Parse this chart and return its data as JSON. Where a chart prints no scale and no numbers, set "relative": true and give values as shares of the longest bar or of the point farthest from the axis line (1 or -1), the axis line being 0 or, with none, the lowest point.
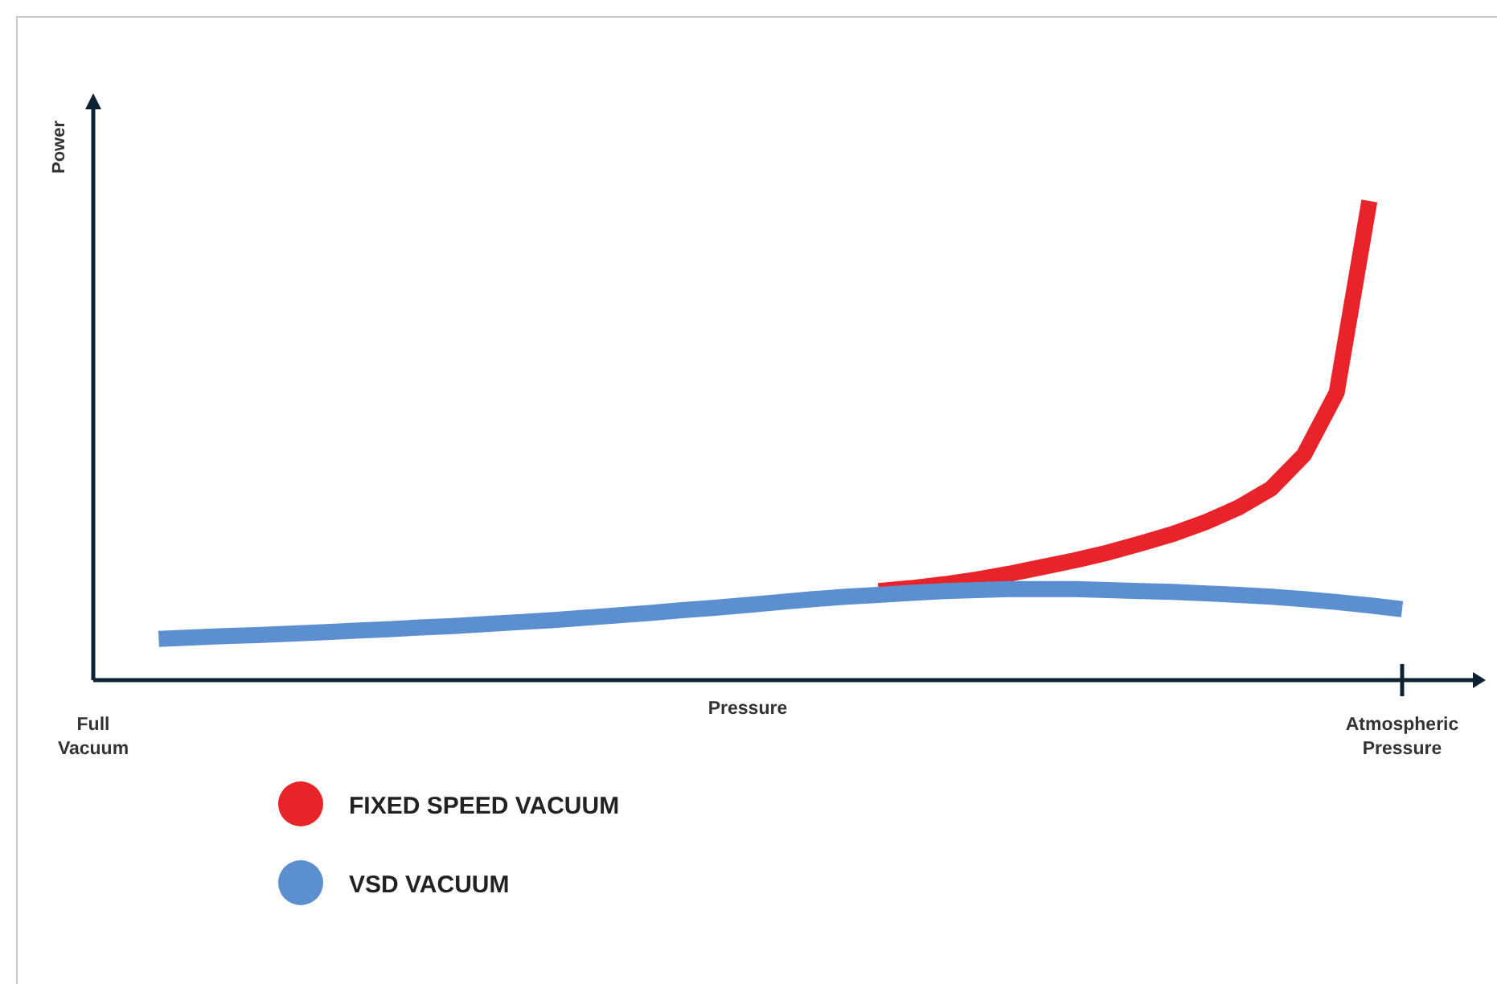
{
  "chart_data": {
    "type": "line",
    "relative": true,
    "xlabel": "Pressure",
    "ylabel": "Power",
    "categories": [
      "Full Vacuum",
      null,
      null,
      null,
      null,
      null,
      null,
      null,
      null,
      null,
      null,
      null,
      null,
      null,
      null,
      null,
      null,
      null,
      null,
      null,
      null,
      null,
      null,
      null,
      null,
      null,
      null,
      null,
      null,
      null,
      null,
      null,
      null,
      null,
      null,
      null,
      null,
      null,
      null,
      null,
      "Atmospheric Pressure"
    ],
    "legend": "bottom left",
    "series": [
      {
        "name": "FIXED SPEED VACUUM",
        "color": "#e8232a",
        "values": [
          null,
          null,
          null,
          null,
          null,
          null,
          null,
          null,
          null,
          null,
          null,
          null,
          null,
          null,
          null,
          null,
          null,
          null,
          null,
          null,
          null,
          null,
          null,
          null,
          0.186,
          0.192,
          0.2,
          0.21,
          0.222,
          0.236,
          0.25,
          0.266,
          0.285,
          0.305,
          0.33,
          0.36,
          0.4,
          0.47,
          0.6,
          1.0,
          null
        ]
      },
      {
        "name": "VSD VACUUM",
        "color": "#5b8fd0",
        "values": [
          null,
          null,
          0.086,
          0.089,
          0.092,
          0.094,
          0.097,
          0.1,
          0.103,
          0.106,
          0.11,
          0.113,
          0.117,
          0.121,
          0.125,
          0.13,
          0.135,
          0.14,
          0.146,
          0.151,
          0.157,
          0.163,
          0.169,
          0.174,
          0.178,
          0.182,
          0.186,
          0.188,
          0.19,
          0.19,
          0.19,
          0.188,
          0.186,
          0.184,
          0.181,
          0.178,
          0.174,
          0.169,
          0.163,
          0.156,
          0.148
        ]
      }
    ]
  }
}
